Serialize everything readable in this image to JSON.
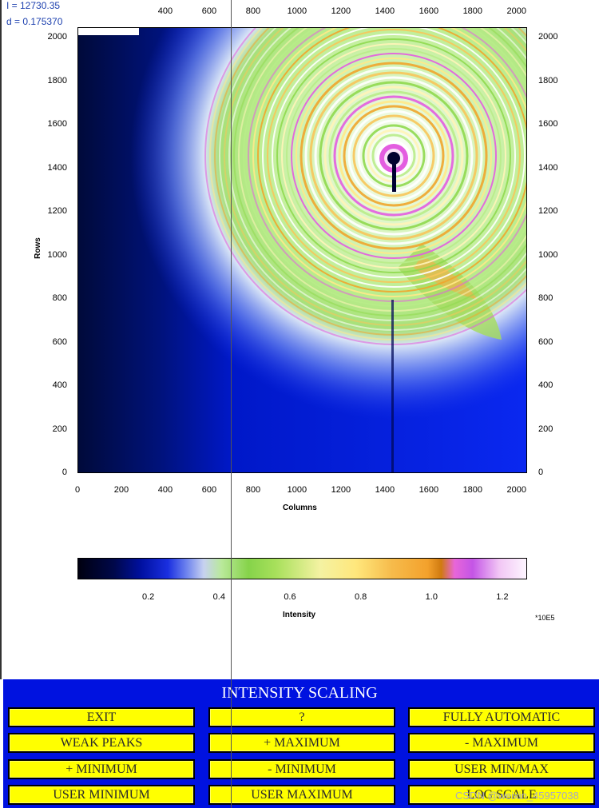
{
  "readout": {
    "intensity": "I = 12730.35",
    "d_spacing": "d = 0.175370"
  },
  "image_plot": {
    "ylabel": "Rows",
    "xlabel": "Columns",
    "x_ticks": [
      "0",
      "200",
      "400",
      "600",
      "800",
      "1000",
      "1200",
      "1400",
      "1600",
      "1800",
      "2000"
    ],
    "top_ticks": [
      "400",
      "600",
      "800",
      "1000",
      "1200",
      "1400",
      "1600",
      "1800",
      "2000"
    ],
    "y_ticks": [
      "0",
      "200",
      "400",
      "600",
      "800",
      "1000",
      "1200",
      "1400",
      "1600",
      "1800",
      "2000"
    ]
  },
  "colorbar": {
    "ticks": [
      "0.2",
      "0.4",
      "0.6",
      "0.8",
      "1.0",
      "1.2"
    ],
    "label": "Intensity",
    "exponent": "*10E5"
  },
  "chart_data": {
    "type": "heatmap",
    "title": "",
    "xlabel": "Columns",
    "ylabel": "Rows",
    "xlim": [
      0,
      2048
    ],
    "ylim": [
      0,
      2048
    ],
    "colorbar": {
      "label": "Intensity",
      "range": [
        0,
        1.27
      ],
      "scale": "*10E5",
      "ticks": [
        0.2,
        0.4,
        0.6,
        0.8,
        1.0,
        1.2
      ]
    },
    "beam_center": {
      "x": 1450,
      "y": 1450
    }
  },
  "panel": {
    "title": "INTENSITY SCALING",
    "buttons": [
      "EXIT",
      "?",
      "FULLY AUTOMATIC",
      "WEAK PEAKS",
      "+ MAXIMUM",
      "- MAXIMUM",
      "+ MINIMUM",
      "- MINIMUM",
      "USER MIN/MAX",
      "USER MINIMUM",
      "USER MAXIMUM",
      "LOG SCALE"
    ]
  },
  "watermark": "CSDN @weixin_45957038",
  "colors": {
    "panel": "#0012e0",
    "button": "#ffff00",
    "readout": "#1b3fae"
  }
}
